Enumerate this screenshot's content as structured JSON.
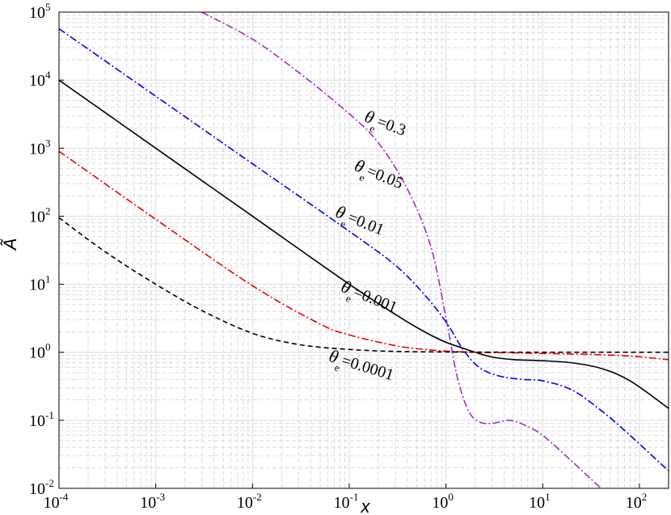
{
  "chart_data": {
    "type": "line",
    "xlabel": "x",
    "ylabel": "Ã",
    "x_scale": "log",
    "y_scale": "log",
    "xlim": [
      0.0001,
      200
    ],
    "ylim": [
      0.01,
      100000
    ],
    "grid": "on (major solid, minor dashed, light gray)",
    "x_ticks": [
      {
        "value": 0.0001,
        "base": "10",
        "exp": "-4"
      },
      {
        "value": 0.001,
        "base": "10",
        "exp": "-3"
      },
      {
        "value": 0.01,
        "base": "10",
        "exp": "-2"
      },
      {
        "value": 0.1,
        "base": "10",
        "exp": "-1"
      },
      {
        "value": 1,
        "base": "10",
        "exp": "0"
      },
      {
        "value": 10,
        "base": "10",
        "exp": "1"
      },
      {
        "value": 100,
        "base": "10",
        "exp": "2"
      }
    ],
    "y_ticks": [
      {
        "value": 0.01,
        "base": "10",
        "exp": "-2"
      },
      {
        "value": 0.1,
        "base": "10",
        "exp": "-1"
      },
      {
        "value": 1,
        "base": "10",
        "exp": "0"
      },
      {
        "value": 10,
        "base": "10",
        "exp": "1"
      },
      {
        "value": 100,
        "base": "10",
        "exp": "2"
      },
      {
        "value": 1000,
        "base": "10",
        "exp": "3"
      },
      {
        "value": 10000,
        "base": "10",
        "exp": "4"
      },
      {
        "value": 100000,
        "base": "10",
        "exp": "5"
      }
    ],
    "series": [
      {
        "name": "θe=0.3",
        "label_parts": {
          "sym": "θ",
          "sub": "e",
          "val": "=0.3"
        },
        "label_at": {
          "x": 0.14,
          "y": 2500
        },
        "label_rotate": 20,
        "color": "#9b2fc9",
        "dash": "9,3,2,3",
        "x": [
          0.003,
          0.01,
          0.03,
          0.1,
          0.2,
          0.4,
          0.7,
          1.0,
          1.3,
          1.7,
          2.2,
          3.0,
          4.5,
          6.5,
          10,
          20,
          40
        ],
        "y": [
          100000,
          40000,
          13000,
          3200,
          1200,
          250,
          35,
          3.2,
          0.45,
          0.14,
          0.095,
          0.09,
          0.1,
          0.085,
          0.06,
          0.025,
          0.01
        ]
      },
      {
        "name": "θe=0.05",
        "label_parts": {
          "sym": "θ",
          "sub": "e",
          "val": "=0.05"
        },
        "label_at": {
          "x": 0.11,
          "y": 480
        },
        "label_rotate": 22,
        "color": "#0000ee",
        "dash": "9,3,2,3",
        "x": [
          0.0001,
          0.001,
          0.01,
          0.1,
          0.3,
          0.6,
          1.0,
          1.5,
          2.2,
          3.5,
          6,
          10,
          20,
          40,
          80,
          200
        ],
        "y": [
          57000,
          5800,
          590,
          60,
          19,
          7,
          2.8,
          1.1,
          0.6,
          0.45,
          0.4,
          0.38,
          0.28,
          0.14,
          0.06,
          0.018
        ]
      },
      {
        "name": "θe=0.01",
        "label_parts": {
          "sym": "θ",
          "sub": "e",
          "val": "=0.01"
        },
        "label_at": {
          "x": 0.07,
          "y": 100
        },
        "label_rotate": 22,
        "color": "#000000",
        "dash": "",
        "x": [
          0.0001,
          0.001,
          0.01,
          0.1,
          0.3,
          0.6,
          1.0,
          1.5,
          2.0,
          3,
          5,
          10,
          20,
          40,
          80,
          200
        ],
        "y": [
          10000,
          1000,
          100,
          10,
          3.6,
          2.0,
          1.4,
          1.15,
          1.0,
          0.85,
          0.78,
          0.75,
          0.7,
          0.58,
          0.38,
          0.15
        ]
      },
      {
        "name": "θe=0.001",
        "label_parts": {
          "sym": "θ",
          "sub": "e",
          "val": "=0.001"
        },
        "label_at": {
          "x": 0.08,
          "y": 8
        },
        "label_rotate": 22,
        "color": "#ee0000",
        "dash": "9,3,2,3",
        "x": [
          0.0001,
          0.001,
          0.01,
          0.05,
          0.1,
          0.3,
          0.6,
          1.0,
          2,
          5,
          10,
          30,
          80,
          200
        ],
        "y": [
          900,
          90,
          9.5,
          2.6,
          1.8,
          1.25,
          1.1,
          1.04,
          1.0,
          0.98,
          0.96,
          0.93,
          0.88,
          0.78
        ]
      },
      {
        "name": "θe=0.0001",
        "label_parts": {
          "sym": "θ",
          "sub": "e",
          "val": "=0.0001"
        },
        "label_at": {
          "x": 0.06,
          "y": 0.75
        },
        "label_rotate": 17,
        "color": "#000000",
        "dash": "6,4",
        "x": [
          0.0001,
          0.0003,
          0.001,
          0.003,
          0.01,
          0.03,
          0.1,
          0.3,
          1,
          10,
          200
        ],
        "y": [
          95,
          30,
          10,
          4.1,
          1.9,
          1.3,
          1.1,
          1.03,
          1.01,
          1.0,
          1.0
        ]
      }
    ]
  }
}
